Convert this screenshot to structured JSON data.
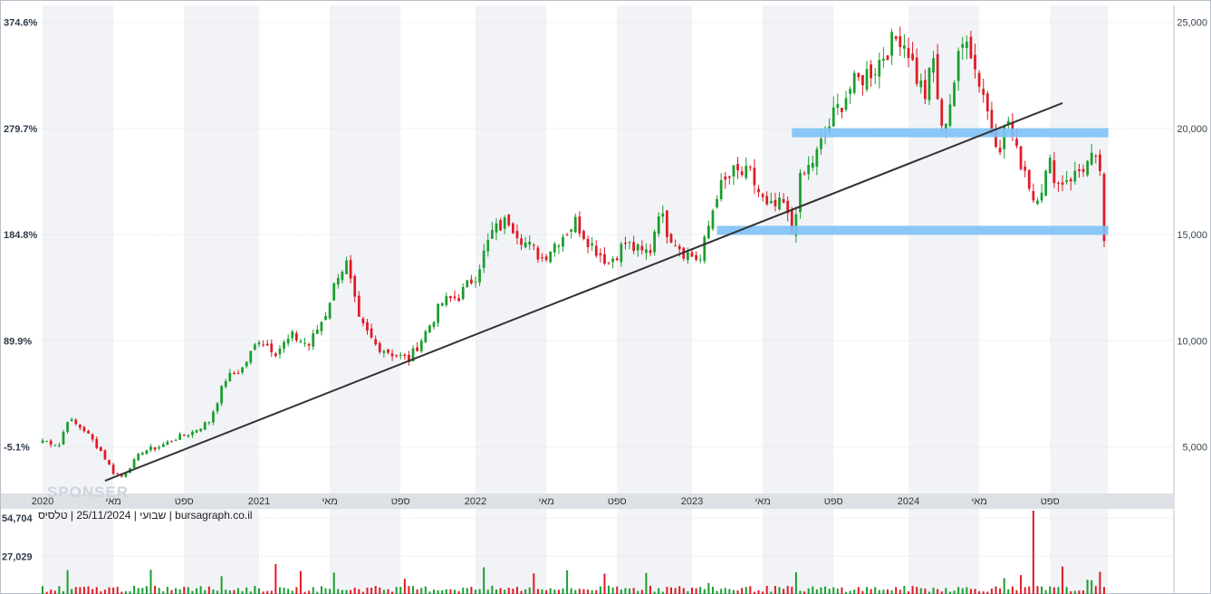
{
  "chart_data": {
    "type": "candlestick",
    "source_line": "שבועי | 25/11/2024 | טלסיס | bursagraph.co.il",
    "watermark": "SPONSER",
    "price_axis": {
      "ticks": [
        "5,000",
        "10,000",
        "15,000",
        "20,000",
        "25,000"
      ],
      "values": [
        5000,
        10000,
        15000,
        20000,
        25000
      ],
      "ylim": [
        2800,
        25800
      ]
    },
    "percent_axis": {
      "ticks": [
        "-5.1%",
        "89.9%",
        "184.8%",
        "279.7%",
        "374.6%"
      ]
    },
    "volume_axis": {
      "ticks": [
        "27,029",
        "54,704"
      ],
      "values": [
        27029,
        54704
      ]
    },
    "x_axis": {
      "labels": [
        "2020",
        "מאי",
        "ספט",
        "2021",
        "מאי",
        "ספט",
        "2022",
        "מאי",
        "ספט",
        "2023",
        "מאי",
        "ספט",
        "2024",
        "מאי",
        "ספט"
      ],
      "label_weeks": [
        0,
        17,
        34,
        52,
        69,
        86,
        104,
        121,
        138,
        156,
        173,
        190,
        208,
        225,
        242
      ]
    },
    "total_weeks": 256,
    "keypoints": [
      [
        0,
        5300
      ],
      [
        4,
        5100
      ],
      [
        6,
        6300
      ],
      [
        10,
        5800
      ],
      [
        14,
        4800
      ],
      [
        17,
        3800
      ],
      [
        19,
        3600
      ],
      [
        24,
        4800
      ],
      [
        28,
        5000
      ],
      [
        32,
        5400
      ],
      [
        36,
        5700
      ],
      [
        40,
        6200
      ],
      [
        44,
        8200
      ],
      [
        48,
        8700
      ],
      [
        52,
        10100
      ],
      [
        56,
        9500
      ],
      [
        60,
        10200
      ],
      [
        64,
        9800
      ],
      [
        68,
        11300
      ],
      [
        71,
        13200
      ],
      [
        73,
        13600
      ],
      [
        76,
        10900
      ],
      [
        80,
        9800
      ],
      [
        84,
        9400
      ],
      [
        88,
        9100
      ],
      [
        92,
        10400
      ],
      [
        96,
        11800
      ],
      [
        100,
        12100
      ],
      [
        104,
        13100
      ],
      [
        108,
        15100
      ],
      [
        112,
        15700
      ],
      [
        116,
        14600
      ],
      [
        120,
        13900
      ],
      [
        124,
        14800
      ],
      [
        128,
        15600
      ],
      [
        132,
        14500
      ],
      [
        136,
        13700
      ],
      [
        140,
        14600
      ],
      [
        144,
        14100
      ],
      [
        146,
        14300
      ],
      [
        148,
        16200
      ],
      [
        150,
        15200
      ],
      [
        154,
        14200
      ],
      [
        158,
        13800
      ],
      [
        162,
        17000
      ],
      [
        166,
        17900
      ],
      [
        170,
        17800
      ],
      [
        174,
        16200
      ],
      [
        178,
        16400
      ],
      [
        180,
        15100
      ],
      [
        182,
        17500
      ],
      [
        186,
        18800
      ],
      [
        190,
        20600
      ],
      [
        194,
        21900
      ],
      [
        198,
        22600
      ],
      [
        200,
        22900
      ],
      [
        203,
        23800
      ],
      [
        206,
        24400
      ],
      [
        208,
        23700
      ],
      [
        210,
        22400
      ],
      [
        212,
        21600
      ],
      [
        214,
        23200
      ],
      [
        216,
        19800
      ],
      [
        218,
        21300
      ],
      [
        220,
        23200
      ],
      [
        222,
        24600
      ],
      [
        224,
        22800
      ],
      [
        226,
        21700
      ],
      [
        228,
        19900
      ],
      [
        230,
        19300
      ],
      [
        232,
        20400
      ],
      [
        234,
        18800
      ],
      [
        236,
        18100
      ],
      [
        238,
        16700
      ],
      [
        240,
        17300
      ],
      [
        242,
        18300
      ],
      [
        244,
        17400
      ],
      [
        246,
        17700
      ],
      [
        248,
        17800
      ],
      [
        250,
        18200
      ],
      [
        252,
        18500
      ],
      [
        254,
        18100
      ],
      [
        255,
        14700
      ]
    ],
    "trend_line": {
      "from": [
        15,
        3400
      ],
      "to": [
        245,
        21200
      ],
      "color": "#333333"
    },
    "zones": [
      {
        "from_week": 162,
        "to_week": 256,
        "price": 15200,
        "color": "#7ec1f7"
      },
      {
        "from_week": 180,
        "to_week": 256,
        "price": 19800,
        "color": "#7ec1f7"
      }
    ],
    "colors": {
      "up": "#1a9e2e",
      "down": "#e01a24",
      "grid": "#d7dce3",
      "band": "#f1f3f6",
      "axis_strip": "#dde1e6",
      "trend": "#333333"
    }
  }
}
